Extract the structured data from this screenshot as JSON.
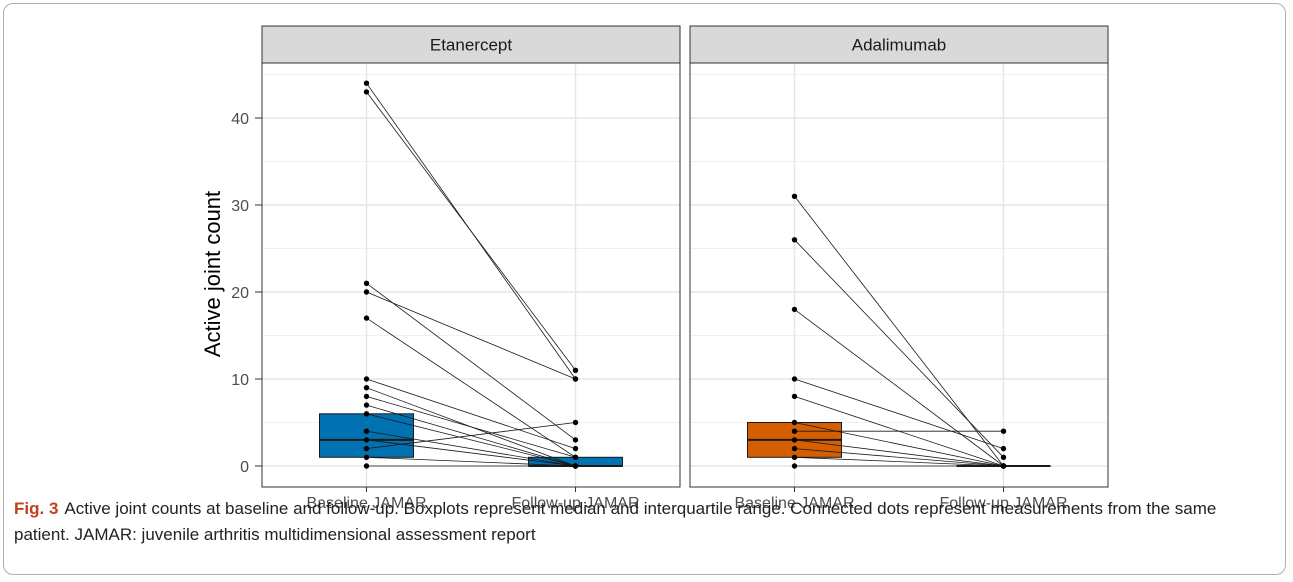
{
  "chart_data": {
    "type": "scatter",
    "ylabel": "Active joint count",
    "ylim": [
      0,
      45
    ],
    "yticks": [
      0,
      10,
      20,
      30,
      40
    ],
    "categories": [
      "Baseline JAMAR",
      "Follow-up JAMAR"
    ],
    "grid": true,
    "panels": [
      {
        "title": "Etanercept",
        "fill": "#0072b2",
        "boxes": [
          {
            "category": "Baseline JAMAR",
            "q1": 1,
            "median": 3,
            "q3": 6
          },
          {
            "category": "Follow-up JAMAR",
            "q1": 0,
            "median": 0,
            "q3": 1
          }
        ],
        "pairs": [
          [
            44,
            10
          ],
          [
            43,
            11
          ],
          [
            21,
            3
          ],
          [
            20,
            10
          ],
          [
            17,
            1
          ],
          [
            10,
            2
          ],
          [
            9,
            0
          ],
          [
            8,
            1
          ],
          [
            7,
            0
          ],
          [
            6,
            0
          ],
          [
            4,
            0
          ],
          [
            3,
            0
          ],
          [
            2,
            5
          ],
          [
            1,
            0
          ],
          [
            0,
            0
          ]
        ]
      },
      {
        "title": "Adalimumab",
        "fill": "#d55e00",
        "boxes": [
          {
            "category": "Baseline JAMAR",
            "q1": 1,
            "median": 3,
            "q3": 5
          },
          {
            "category": "Follow-up JAMAR",
            "q1": 0,
            "median": 0,
            "q3": 0
          }
        ],
        "pairs": [
          [
            31,
            0
          ],
          [
            26,
            1
          ],
          [
            18,
            0
          ],
          [
            10,
            2
          ],
          [
            8,
            0
          ],
          [
            5,
            0
          ],
          [
            4,
            4
          ],
          [
            3,
            0
          ],
          [
            2,
            0
          ],
          [
            1,
            0
          ],
          [
            0,
            0
          ]
        ]
      }
    ]
  },
  "caption": {
    "label": "Fig. 3",
    "text": "Active joint counts at baseline and follow-up. Boxplots represent median and interquartile range. Connected dots represent measurements from the same patient. JAMAR: juvenile arthritis multidimensional assessment report"
  }
}
